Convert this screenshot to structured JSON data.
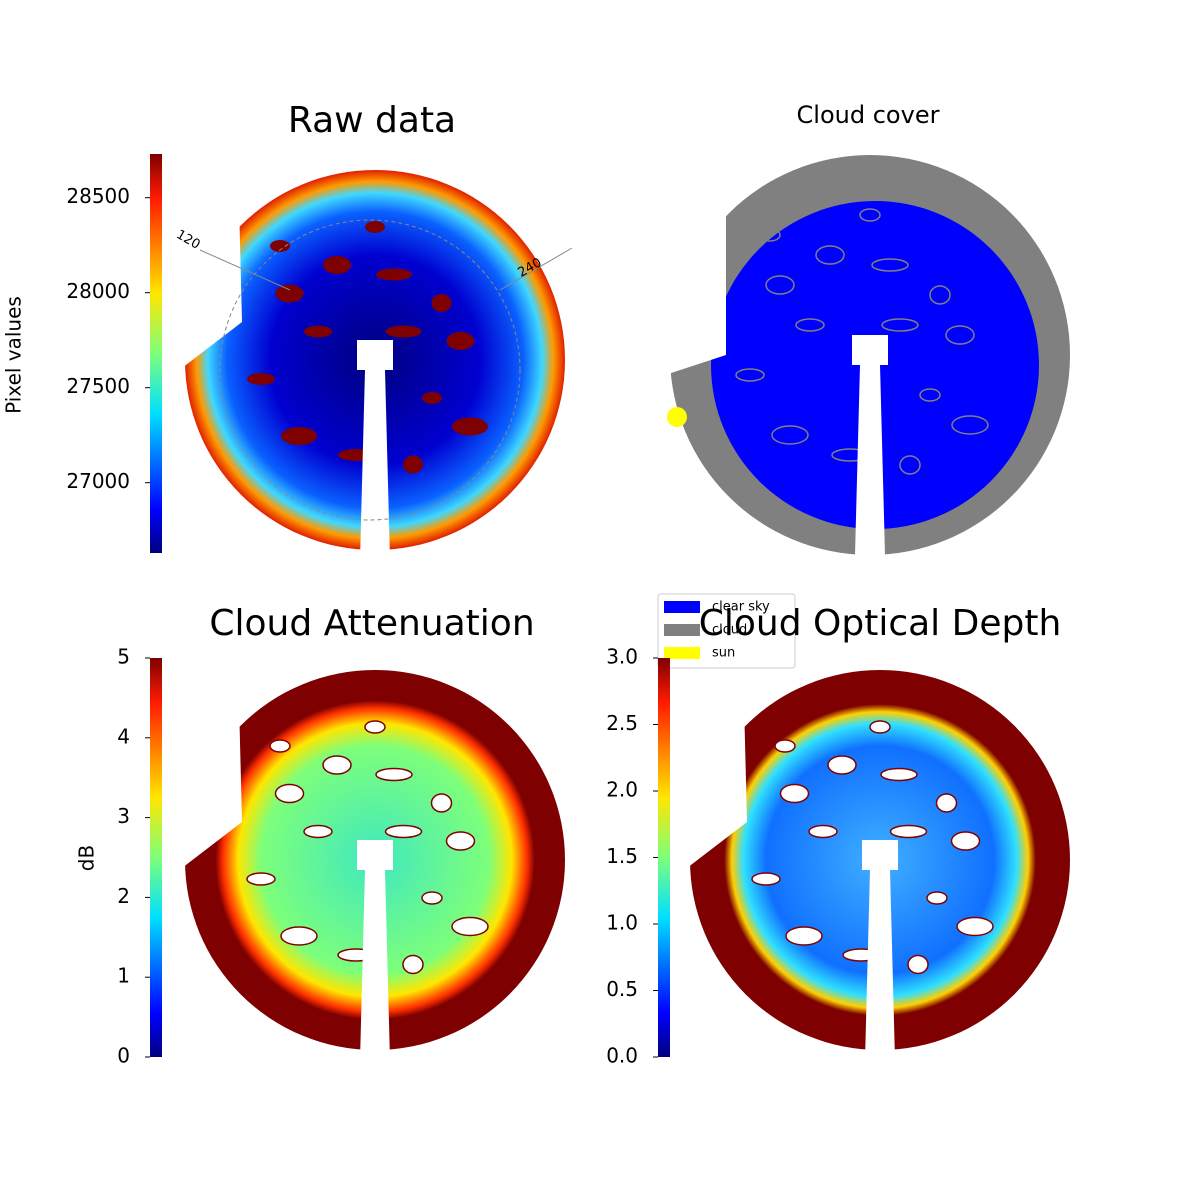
{
  "chart_data": [
    {
      "type": "image",
      "title": "Raw data",
      "colorbar_label": "Pixel values",
      "colormap": "jet",
      "clim": [
        26630,
        28730
      ],
      "ticks": [
        27000,
        27500,
        28000,
        28500
      ],
      "annotations": [
        "120",
        "240"
      ]
    },
    {
      "type": "categorical-image",
      "title": "Cloud cover",
      "series": [
        {
          "name": "clear sky",
          "color": "#0000ff"
        },
        {
          "name": "cloud",
          "color": "#808080"
        },
        {
          "name": "sun",
          "color": "#ffff00"
        }
      ],
      "legend": "lower left"
    },
    {
      "type": "image",
      "title": "Cloud Attenuation",
      "colorbar_label": "dB",
      "colormap": "jet",
      "clim": [
        0,
        5
      ],
      "ticks": [
        0,
        1,
        2,
        3,
        4,
        5
      ]
    },
    {
      "type": "image",
      "title": "Cloud Optical Depth",
      "colormap": "jet",
      "clim": [
        0,
        3
      ],
      "ticks": [
        {
          "value": 0,
          "label": "0.0"
        },
        {
          "value": 0.5,
          "label": "0.5"
        },
        {
          "value": 1,
          "label": "1.0"
        },
        {
          "value": 1.5,
          "label": "1.5"
        },
        {
          "value": 2,
          "label": "2.0"
        },
        {
          "value": 2.5,
          "label": "2.5"
        },
        {
          "value": 3,
          "label": "3.0"
        }
      ]
    }
  ]
}
